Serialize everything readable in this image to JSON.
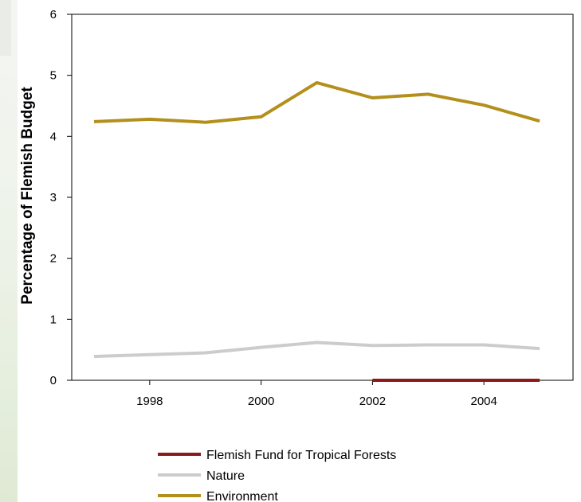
{
  "chart_data": {
    "type": "line",
    "title": "",
    "xlabel": "",
    "ylabel": "Percentage of Flemish Budget",
    "xlim": [
      1996.6,
      2005.6
    ],
    "ylim": [
      0,
      6
    ],
    "x_ticks": [
      1998,
      2000,
      2002,
      2004
    ],
    "x_tick_labels": [
      "1998",
      "2000",
      "2002",
      "2004"
    ],
    "y_ticks": [
      0,
      1,
      2,
      3,
      4,
      5,
      6
    ],
    "y_tick_labels": [
      "0",
      "1",
      "2",
      "3",
      "4",
      "5",
      "6"
    ],
    "grid": false,
    "legend_position": "bottom",
    "series": [
      {
        "name": "Flemish Fund for Tropical Forests",
        "color": "#8b1a1a",
        "x": [
          2002,
          2003,
          2004,
          2005
        ],
        "values": [
          0.0,
          0.0,
          0.0,
          0.0
        ]
      },
      {
        "name": "Nature",
        "color": "#cccccc",
        "x": [
          1997,
          1998,
          1999,
          2000,
          2001,
          2002,
          2003,
          2004,
          2005
        ],
        "values": [
          0.39,
          0.42,
          0.45,
          0.54,
          0.62,
          0.57,
          0.58,
          0.58,
          0.52
        ]
      },
      {
        "name": "Environment",
        "color": "#b38f1c",
        "x": [
          1997,
          1998,
          1999,
          2000,
          2001,
          2002,
          2003,
          2004,
          2005
        ],
        "values": [
          4.24,
          4.28,
          4.23,
          4.32,
          4.88,
          4.63,
          4.69,
          4.51,
          4.25
        ]
      }
    ]
  }
}
